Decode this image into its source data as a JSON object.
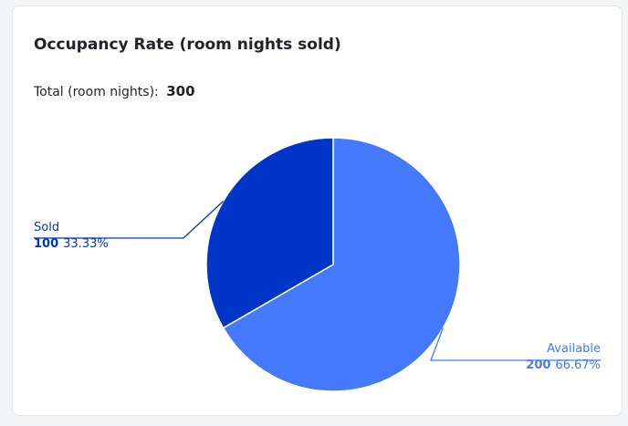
{
  "card": {
    "title": "Occupancy Rate (room nights sold)",
    "total_label": "Total (room nights):",
    "total_value": "300"
  },
  "chart_data": {
    "type": "pie",
    "title": "Occupancy Rate (room nights sold)",
    "total": 300,
    "start_angle_deg": 0,
    "direction": "counterclockwise",
    "slices": [
      {
        "label": "Sold",
        "value": 100,
        "percent": "33.33%",
        "value_text": "100",
        "color": "#0036c8"
      },
      {
        "label": "Available",
        "value": 200,
        "percent": "66.67%",
        "value_text": "200",
        "color": "#4479fa"
      }
    ],
    "label_colors": {
      "Sold": "#0036c8",
      "Available": "#4479fa"
    },
    "slice_border_color": "#ffffff"
  }
}
